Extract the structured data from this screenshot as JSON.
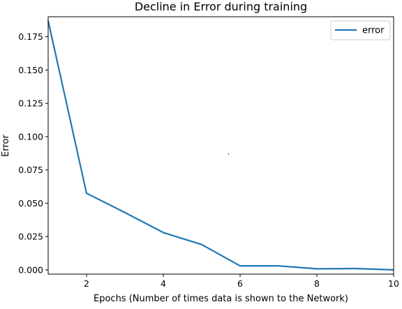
{
  "chart_data": {
    "type": "line",
    "title": "Decline in Error during training",
    "xlabel": "Epochs (Number of times data is shown to the Network)",
    "ylabel": "Error",
    "xlim": [
      1,
      10
    ],
    "ylim": [
      -0.0032,
      0.19
    ],
    "x_ticks": [
      2,
      4,
      6,
      8,
      10
    ],
    "y_ticks": [
      "0.000",
      "0.025",
      "0.050",
      "0.075",
      "0.100",
      "0.125",
      "0.150",
      "0.175"
    ],
    "grid": false,
    "legend_position": "top-right",
    "series": [
      {
        "name": "error",
        "color": "#1f77b4",
        "x": [
          1,
          2,
          3,
          4,
          5,
          6,
          7,
          8,
          9,
          10
        ],
        "y": [
          0.187,
          0.0575,
          0.043,
          0.028,
          0.019,
          0.003,
          0.003,
          0.0008,
          0.001,
          0.0
        ]
      }
    ],
    "stray_point": {
      "x": 5.7,
      "y": 0.087,
      "color": "#0000ff"
    }
  }
}
